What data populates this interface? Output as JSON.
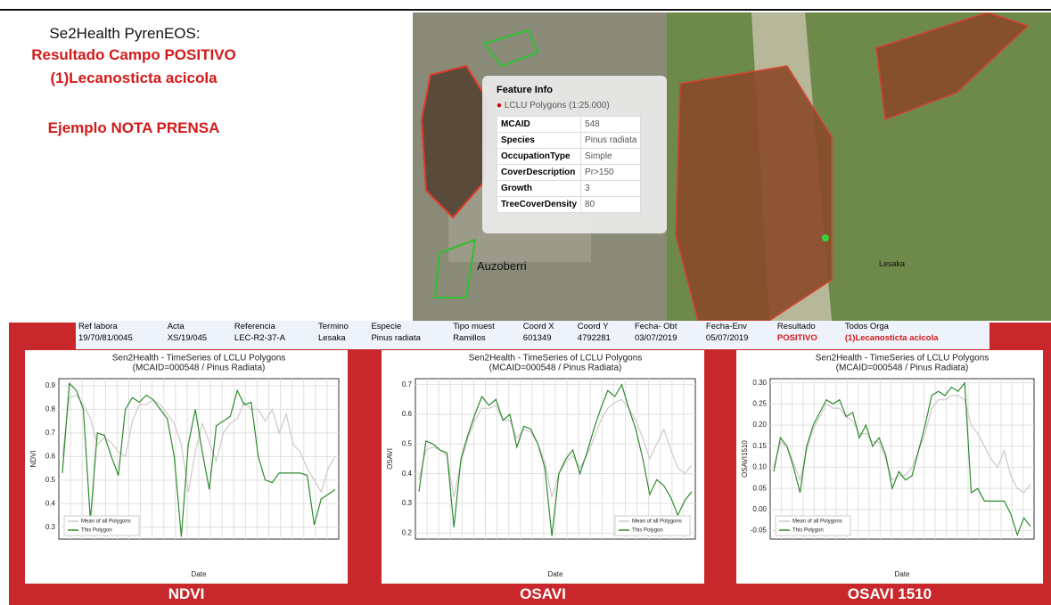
{
  "header": {
    "title": "Se2Health PyrenEOS:",
    "line1": "Resultado Campo POSITIVO",
    "line2": "(1)Lecanosticta acicola",
    "line3": "Ejemplo NOTA PRENSA"
  },
  "map": {
    "place1": "Auzoberri",
    "place2": "Lesaka"
  },
  "feature_info": {
    "title": "Feature Info",
    "layer": "LCLU Polygons (1:25.000)",
    "rows": [
      [
        "MCAID",
        "548"
      ],
      [
        "Species",
        "Pinus radiata"
      ],
      [
        "OccupationType",
        "Simple"
      ],
      [
        "CoverDescription",
        "Pr>150"
      ],
      [
        "Growth",
        "3"
      ],
      [
        "TreeCoverDensity",
        "80"
      ]
    ]
  },
  "table": {
    "headers": [
      "Ref labora",
      "Acta",
      "Referencia",
      "Termino",
      "Especie",
      "Tipo muest",
      "Coord X",
      "Coord Y",
      "Fecha- Obt",
      "Fecha-Env",
      "Resultado",
      "Todos Orga"
    ],
    "row": [
      "19/70/81/0045",
      "XS/19/045",
      "LEC-R2-37-A",
      "Lesaka",
      "Pinus radiata",
      "Ramillos",
      "601349",
      "4792281",
      "03/07/2019",
      "05/07/2019",
      "POSITIVO",
      "(1)Lecanosticta acicola"
    ]
  },
  "chart_data": [
    {
      "type": "line",
      "title": "Sen2Health - TimeSeries of LCLU Polygons",
      "subtitle": "(MCAID=000548 / Pinus Radiata)",
      "y_label": "NDVI",
      "x_label": "Date",
      "caption": "NDVI",
      "ylim": [
        0.25,
        0.93
      ],
      "yticks": [
        0.3,
        0.4,
        0.5,
        0.6,
        0.7,
        0.8,
        0.9
      ],
      "grid": true,
      "legend": "lower-left",
      "series": [
        {
          "name": "Mean of all Polygons",
          "color": "#d2c8cc",
          "values": [
            0.6,
            0.85,
            0.86,
            0.82,
            0.76,
            0.65,
            0.68,
            0.66,
            0.62,
            0.6,
            0.75,
            0.82,
            0.82,
            0.84,
            0.82,
            0.78,
            0.74,
            0.65,
            0.45,
            0.62,
            0.74,
            0.66,
            0.58,
            0.7,
            0.74,
            0.76,
            0.83,
            0.8,
            0.8,
            0.75,
            0.8,
            0.7,
            0.78,
            0.65,
            0.62,
            0.55,
            0.5,
            0.45,
            0.55,
            0.6
          ]
        },
        {
          "name": "This Polygon",
          "color": "#2e8b2e",
          "values": [
            0.53,
            0.91,
            0.88,
            0.8,
            0.33,
            0.7,
            0.69,
            0.6,
            0.52,
            0.8,
            0.85,
            0.83,
            0.86,
            0.84,
            0.8,
            0.76,
            0.6,
            0.26,
            0.65,
            0.8,
            0.62,
            0.46,
            0.73,
            0.75,
            0.77,
            0.88,
            0.82,
            0.83,
            0.6,
            0.5,
            0.49,
            0.53,
            0.53,
            0.53,
            0.53,
            0.52,
            0.31,
            0.42,
            0.44,
            0.46
          ]
        }
      ]
    },
    {
      "type": "line",
      "title": "Sen2Health - TimeSeries of LCLU Polygons",
      "subtitle": "(MCAID=000548 / Pinus Radiata)",
      "y_label": "OSAVI",
      "x_label": "Date",
      "caption": "OSAVI",
      "ylim": [
        0.18,
        0.72
      ],
      "yticks": [
        0.2,
        0.3,
        0.4,
        0.5,
        0.6,
        0.7
      ],
      "grid": true,
      "legend": "lower-right",
      "series": [
        {
          "name": "Mean of all Polygons",
          "color": "#d2c8cc",
          "values": [
            0.38,
            0.48,
            0.49,
            0.48,
            0.46,
            0.32,
            0.44,
            0.52,
            0.58,
            0.62,
            0.62,
            0.63,
            0.58,
            0.58,
            0.52,
            0.55,
            0.54,
            0.5,
            0.44,
            0.32,
            0.4,
            0.44,
            0.46,
            0.42,
            0.46,
            0.52,
            0.58,
            0.62,
            0.64,
            0.65,
            0.62,
            0.58,
            0.52,
            0.45,
            0.5,
            0.55,
            0.48,
            0.42,
            0.4,
            0.43
          ]
        },
        {
          "name": "This Polygon",
          "color": "#2e8b2e",
          "values": [
            0.34,
            0.51,
            0.5,
            0.48,
            0.47,
            0.22,
            0.45,
            0.53,
            0.6,
            0.66,
            0.63,
            0.65,
            0.58,
            0.6,
            0.49,
            0.56,
            0.55,
            0.5,
            0.42,
            0.19,
            0.4,
            0.45,
            0.48,
            0.4,
            0.47,
            0.55,
            0.62,
            0.68,
            0.66,
            0.7,
            0.62,
            0.55,
            0.45,
            0.33,
            0.38,
            0.36,
            0.32,
            0.26,
            0.31,
            0.34
          ]
        }
      ]
    },
    {
      "type": "line",
      "title": "Sen2Health - TimeSeries of LCLU Polygons",
      "subtitle": "(MCAID=000548 / Pinus Radiata)",
      "y_label": "OSAVI1510",
      "x_label": "Date",
      "caption": "OSAVI 1510",
      "ylim": [
        -0.07,
        0.31
      ],
      "yticks": [
        {
          "value": 0.3,
          "label": "0.30"
        },
        0.25,
        {
          "value": 0.2,
          "label": "0.20"
        },
        0.15,
        {
          "value": 0.1,
          "label": "0.10"
        },
        0.05,
        {
          "value": 0,
          "label": "0.00"
        },
        -0.05
      ],
      "grid": true,
      "legend": "lower-left",
      "series": [
        {
          "name": "Mean of all Polygons",
          "color": "#d2c8cc",
          "values": [
            0.1,
            0.16,
            0.15,
            0.11,
            0.07,
            0.14,
            0.19,
            0.22,
            0.25,
            0.24,
            0.24,
            0.22,
            0.21,
            0.18,
            0.18,
            0.16,
            0.16,
            0.12,
            0.07,
            0.08,
            0.08,
            0.1,
            0.14,
            0.18,
            0.24,
            0.26,
            0.26,
            0.27,
            0.27,
            0.26,
            0.2,
            0.18,
            0.15,
            0.12,
            0.1,
            0.14,
            0.08,
            0.05,
            0.04,
            0.06
          ]
        },
        {
          "name": "This Polygon",
          "color": "#2e8b2e",
          "values": [
            0.09,
            0.17,
            0.15,
            0.1,
            0.04,
            0.15,
            0.2,
            0.23,
            0.26,
            0.25,
            0.26,
            0.22,
            0.23,
            0.17,
            0.2,
            0.15,
            0.17,
            0.13,
            0.05,
            0.09,
            0.07,
            0.08,
            0.14,
            0.2,
            0.27,
            0.28,
            0.27,
            0.29,
            0.28,
            0.3,
            0.04,
            0.05,
            0.02,
            0.02,
            0.02,
            0.02,
            -0.01,
            -0.06,
            -0.02,
            -0.04
          ]
        }
      ]
    }
  ]
}
